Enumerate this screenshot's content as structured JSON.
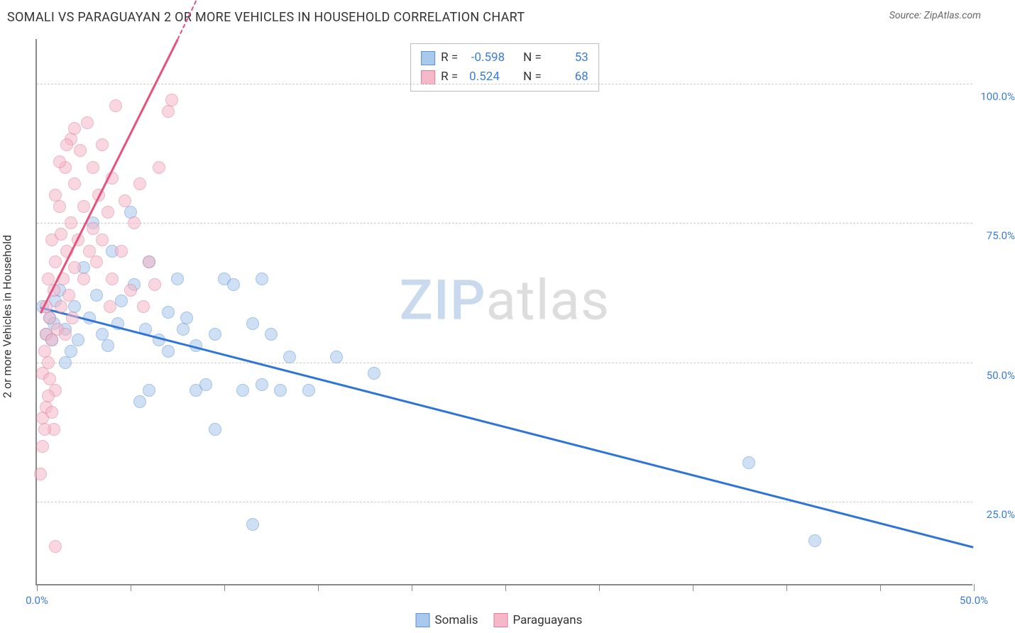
{
  "title": "SOMALI VS PARAGUAYAN 2 OR MORE VEHICLES IN HOUSEHOLD CORRELATION CHART",
  "source_label": "Source: ZipAtlas.com",
  "ylabel": "2 or more Vehicles in Household",
  "watermark_a": "ZIP",
  "watermark_b": "atlas",
  "chart": {
    "type": "scatter",
    "xlim": [
      0,
      50
    ],
    "ylim": [
      10,
      108
    ],
    "x_ticks": [
      0,
      5,
      10,
      15,
      20,
      25,
      30,
      35,
      40,
      45,
      50
    ],
    "x_tick_labels": {
      "0": "0.0%",
      "50": "50.0%"
    },
    "y_gridlines": [
      25,
      50,
      75,
      100
    ],
    "y_tick_labels": {
      "25": "25.0%",
      "50": "50.0%",
      "75": "75.0%",
      "100": "100.0%"
    },
    "background_color": "#ffffff",
    "grid_color": "#cccccc",
    "axis_color": "#888888",
    "marker_radius": 9,
    "marker_opacity": 0.55,
    "series": [
      {
        "name": "Somalis",
        "fill": "#a8c8ec",
        "stroke": "#5b93d6",
        "line_color": "#2e75d6",
        "R": "-0.598",
        "N": "53",
        "trend": {
          "x1": 0.2,
          "y1": 60,
          "x2": 50,
          "y2": 17
        },
        "points": [
          [
            0.3,
            60
          ],
          [
            0.5,
            55
          ],
          [
            0.7,
            58
          ],
          [
            0.8,
            54
          ],
          [
            1.0,
            61
          ],
          [
            1.2,
            63
          ],
          [
            1.5,
            56
          ],
          [
            1.8,
            52
          ],
          [
            2.0,
            60
          ],
          [
            2.2,
            54
          ],
          [
            2.5,
            67
          ],
          [
            2.8,
            58
          ],
          [
            3.0,
            75
          ],
          [
            3.2,
            62
          ],
          [
            3.5,
            55
          ],
          [
            3.8,
            53
          ],
          [
            4.0,
            70
          ],
          [
            4.3,
            57
          ],
          [
            4.5,
            61
          ],
          [
            5.0,
            77
          ],
          [
            5.2,
            64
          ],
          [
            5.5,
            43
          ],
          [
            5.8,
            56
          ],
          [
            6.0,
            68
          ],
          [
            6.0,
            45
          ],
          [
            6.5,
            54
          ],
          [
            7.0,
            59
          ],
          [
            7.0,
            52
          ],
          [
            7.5,
            65
          ],
          [
            7.8,
            56
          ],
          [
            8.0,
            58
          ],
          [
            8.5,
            53
          ],
          [
            8.5,
            45
          ],
          [
            9.0,
            46
          ],
          [
            9.5,
            55
          ],
          [
            9.5,
            38
          ],
          [
            10.0,
            65
          ],
          [
            10.5,
            64
          ],
          [
            11.0,
            45
          ],
          [
            11.5,
            57
          ],
          [
            12.0,
            46
          ],
          [
            12.5,
            55
          ],
          [
            13.0,
            45
          ],
          [
            13.5,
            51
          ],
          [
            14.5,
            45
          ],
          [
            16.0,
            51
          ],
          [
            18.0,
            48
          ],
          [
            11.5,
            21
          ],
          [
            12.0,
            65
          ],
          [
            38.0,
            32
          ],
          [
            41.5,
            18
          ],
          [
            1.5,
            50
          ],
          [
            0.9,
            57
          ]
        ]
      },
      {
        "name": "Paraguayans",
        "fill": "#f4b8c8",
        "stroke": "#e17a9a",
        "line_color": "#e6527e",
        "R": "0.524",
        "N": "68",
        "trend": {
          "x1": 0.2,
          "y1": 59,
          "x2": 7.5,
          "y2": 108
        },
        "dash": {
          "x1": 7.5,
          "y1": 108,
          "x2": 8.5,
          "y2": 115
        },
        "points": [
          [
            0.2,
            30
          ],
          [
            0.3,
            40
          ],
          [
            0.3,
            48
          ],
          [
            0.4,
            52
          ],
          [
            0.5,
            42
          ],
          [
            0.5,
            55
          ],
          [
            0.5,
            60
          ],
          [
            0.6,
            50
          ],
          [
            0.6,
            65
          ],
          [
            0.7,
            47
          ],
          [
            0.7,
            58
          ],
          [
            0.8,
            54
          ],
          [
            0.8,
            72
          ],
          [
            0.9,
            38
          ],
          [
            0.9,
            63
          ],
          [
            1.0,
            45
          ],
          [
            1.0,
            68
          ],
          [
            1.0,
            80
          ],
          [
            1.1,
            56
          ],
          [
            1.2,
            78
          ],
          [
            1.3,
            60
          ],
          [
            1.3,
            73
          ],
          [
            1.4,
            65
          ],
          [
            1.5,
            55
          ],
          [
            1.5,
            85
          ],
          [
            1.6,
            70
          ],
          [
            1.7,
            62
          ],
          [
            1.8,
            75
          ],
          [
            1.8,
            90
          ],
          [
            1.9,
            58
          ],
          [
            2.0,
            67
          ],
          [
            2.0,
            82
          ],
          [
            2.2,
            72
          ],
          [
            2.3,
            88
          ],
          [
            2.5,
            65
          ],
          [
            2.5,
            78
          ],
          [
            2.7,
            93
          ],
          [
            2.8,
            70
          ],
          [
            3.0,
            74
          ],
          [
            3.0,
            85
          ],
          [
            3.2,
            68
          ],
          [
            3.3,
            80
          ],
          [
            3.5,
            72
          ],
          [
            3.5,
            89
          ],
          [
            3.8,
            77
          ],
          [
            4.0,
            65
          ],
          [
            4.0,
            83
          ],
          [
            4.2,
            96
          ],
          [
            4.5,
            70
          ],
          [
            4.7,
            79
          ],
          [
            5.0,
            63
          ],
          [
            5.2,
            75
          ],
          [
            5.5,
            82
          ],
          [
            6.0,
            68
          ],
          [
            6.5,
            85
          ],
          [
            7.0,
            95
          ],
          [
            7.2,
            97
          ],
          [
            2.0,
            92
          ],
          [
            1.6,
            89
          ],
          [
            1.2,
            86
          ],
          [
            0.4,
            38
          ],
          [
            0.3,
            35
          ],
          [
            0.8,
            41
          ],
          [
            0.6,
            44
          ],
          [
            1.0,
            17
          ],
          [
            3.9,
            60
          ],
          [
            6.3,
            64
          ],
          [
            5.7,
            60
          ]
        ]
      }
    ]
  },
  "legend": {
    "series1_label": "Somalis",
    "series2_label": "Paraguayans"
  },
  "stats_box": {
    "r_label": "R =",
    "n_label": "N ="
  }
}
